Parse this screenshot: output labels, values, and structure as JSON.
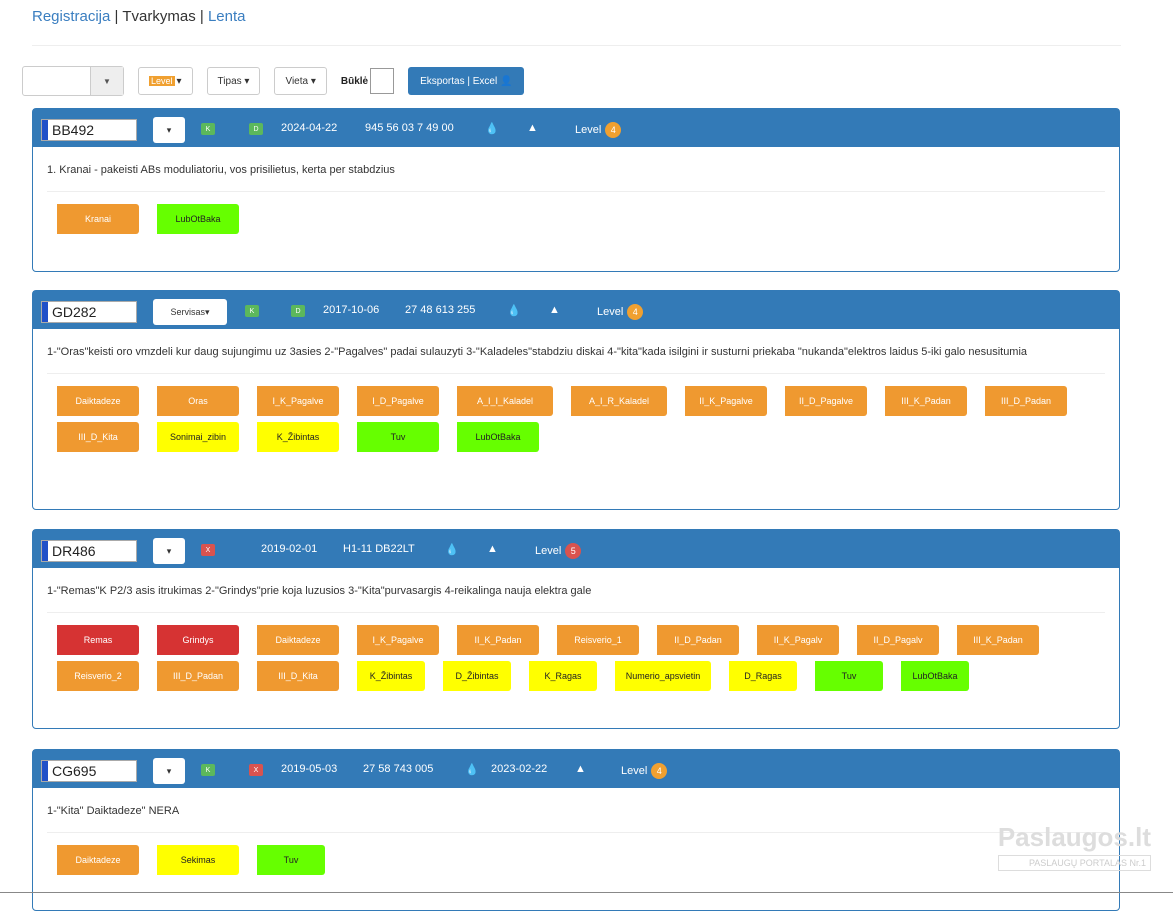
{
  "nav": {
    "link1": "Registracija",
    "sep": "|",
    "current": "Tvarkymas",
    "link2": "Lenta"
  },
  "toolbar": {
    "level_label": "Level",
    "type_label": "Tipas",
    "place_label": "Vieta",
    "status_label": "Būklė",
    "export_label": "Eksportas | Excel"
  },
  "cards": [
    {
      "plate": "BB492",
      "select": "",
      "ok1": "K",
      "ok2": "D",
      "date": "2024-04-22",
      "phone": "945 56 03 7 49 00",
      "level_label": "Level",
      "level": "4",
      "desc": "1. Kranai - pakeisti ABs moduliatoriu, vos prisilietus, kerta per stabdzius",
      "tags": [
        {
          "text": "Kranai",
          "color": "o"
        },
        {
          "text": "LubOtBaka",
          "color": "g"
        }
      ]
    },
    {
      "plate": "GD282",
      "select": "Servisas",
      "ok1": "K",
      "ok2": "D",
      "date": "2017-10-06",
      "phone": "27 48 613 255",
      "level_label": "Level",
      "level": "4",
      "desc": "1-\"Oras\"keisti oro vmzdeli kur daug sujungimu uz 3asies 2-\"Pagalves\" padai sulauzyti 3-\"Kaladeles\"stabdziu diskai 4-\"kita\"kada isilgini ir susturni priekaba \"nukanda\"elektros laidus 5-iki galo nesusitumia",
      "tags": [
        {
          "text": "Daiktadeze",
          "color": "o"
        },
        {
          "text": "Oras",
          "color": "o"
        },
        {
          "text": "I_K_Pagalve",
          "color": "o"
        },
        {
          "text": "I_D_Pagalve",
          "color": "o"
        },
        {
          "text": "A_I_I_Kaladel",
          "color": "o"
        },
        {
          "text": "A_I_R_Kaladel",
          "color": "o"
        },
        {
          "text": "II_K_Pagalve",
          "color": "o"
        },
        {
          "text": "II_D_Pagalve",
          "color": "o"
        },
        {
          "text": "III_K_Padan",
          "color": "o"
        },
        {
          "text": "III_D_Padan",
          "color": "o"
        },
        {
          "text": "III_D_Kita",
          "color": "o"
        },
        {
          "text": "Sonimai_zibin",
          "color": "y"
        },
        {
          "text": "K_Žibintas",
          "color": "y"
        },
        {
          "text": "Tuv",
          "color": "g"
        },
        {
          "text": "LubOtBaka",
          "color": "g"
        }
      ]
    },
    {
      "plate": "DR486",
      "select": "",
      "bad": "X",
      "date": "2019-02-01",
      "phone": "H1-11 DB22LT",
      "level_label": "Level",
      "level": "5",
      "desc": "1-\"Remas\"K P2/3 asis itrukimas 2-\"Grindys\"prie koja luzusios 3-\"Kita\"purvasargis 4-reikalinga nauja elektra gale",
      "tags": [
        {
          "text": "Remas",
          "color": "r"
        },
        {
          "text": "Grindys",
          "color": "r"
        },
        {
          "text": "Daiktadeze",
          "color": "o"
        },
        {
          "text": "I_K_Pagalve",
          "color": "o"
        },
        {
          "text": "II_K_Padan",
          "color": "o"
        },
        {
          "text": "Reisverio_1",
          "color": "o"
        },
        {
          "text": "II_D_Padan",
          "color": "o"
        },
        {
          "text": "II_K_Pagalv",
          "color": "o"
        },
        {
          "text": "II_D_Pagalv",
          "color": "o"
        },
        {
          "text": "III_K_Padan",
          "color": "o"
        },
        {
          "text": "Reisverio_2",
          "color": "o"
        },
        {
          "text": "III_D_Padan",
          "color": "o"
        },
        {
          "text": "III_D_Kita",
          "color": "o"
        },
        {
          "text": "K_Žibintas",
          "color": "y"
        },
        {
          "text": "D_Žibintas",
          "color": "y"
        },
        {
          "text": "K_Ragas",
          "color": "y"
        },
        {
          "text": "Numerio_apsvietin",
          "color": "y"
        },
        {
          "text": "D_Ragas",
          "color": "y"
        },
        {
          "text": "Tuv",
          "color": "g"
        },
        {
          "text": "LubOtBaka",
          "color": "g"
        }
      ]
    },
    {
      "plate": "CG695",
      "select": "",
      "ok1": "K",
      "bad": "X",
      "date": "2019-05-03",
      "phone": "27 58 743 005",
      "date2": "2023-02-22",
      "level_label": "Level",
      "level": "4",
      "desc": "1-\"Kita\" Daiktadeze\" NERA",
      "tags": [
        {
          "text": "Daiktadeze",
          "color": "o"
        },
        {
          "text": "Sekimas",
          "color": "y"
        },
        {
          "text": "Tuv",
          "color": "g"
        }
      ]
    }
  ],
  "watermark": {
    "brand": "Paslaugos.lt",
    "sub": "PASLAUGŲ PORTALAS Nr.1"
  }
}
